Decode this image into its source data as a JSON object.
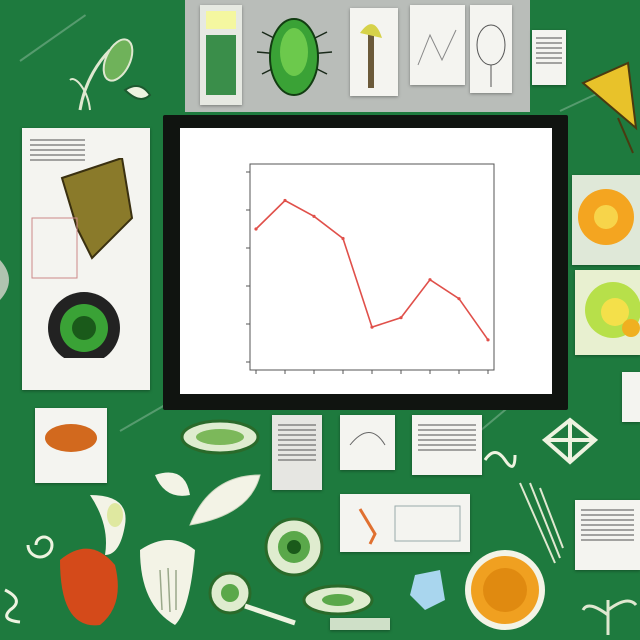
{
  "chart_data": {
    "type": "line",
    "title": "",
    "x": [
      1,
      2,
      3,
      4,
      5,
      6,
      7,
      8,
      9
    ],
    "values": [
      7.2,
      8.1,
      7.6,
      6.9,
      4.1,
      4.4,
      5.6,
      5.0,
      3.7
    ],
    "ylim": [
      3,
      9
    ],
    "line_color": "#e0504a",
    "grid": false
  },
  "colors": {
    "background": "#1e7a3e",
    "panel": "#f4f4f0",
    "leaf_green": "#3f9a3a",
    "flower_orange": "#f0a020",
    "seed_orange": "#d2691e"
  },
  "icons": [
    "leaf-icon",
    "flower-icon",
    "seed-icon",
    "cell-icon",
    "beetle-icon"
  ]
}
